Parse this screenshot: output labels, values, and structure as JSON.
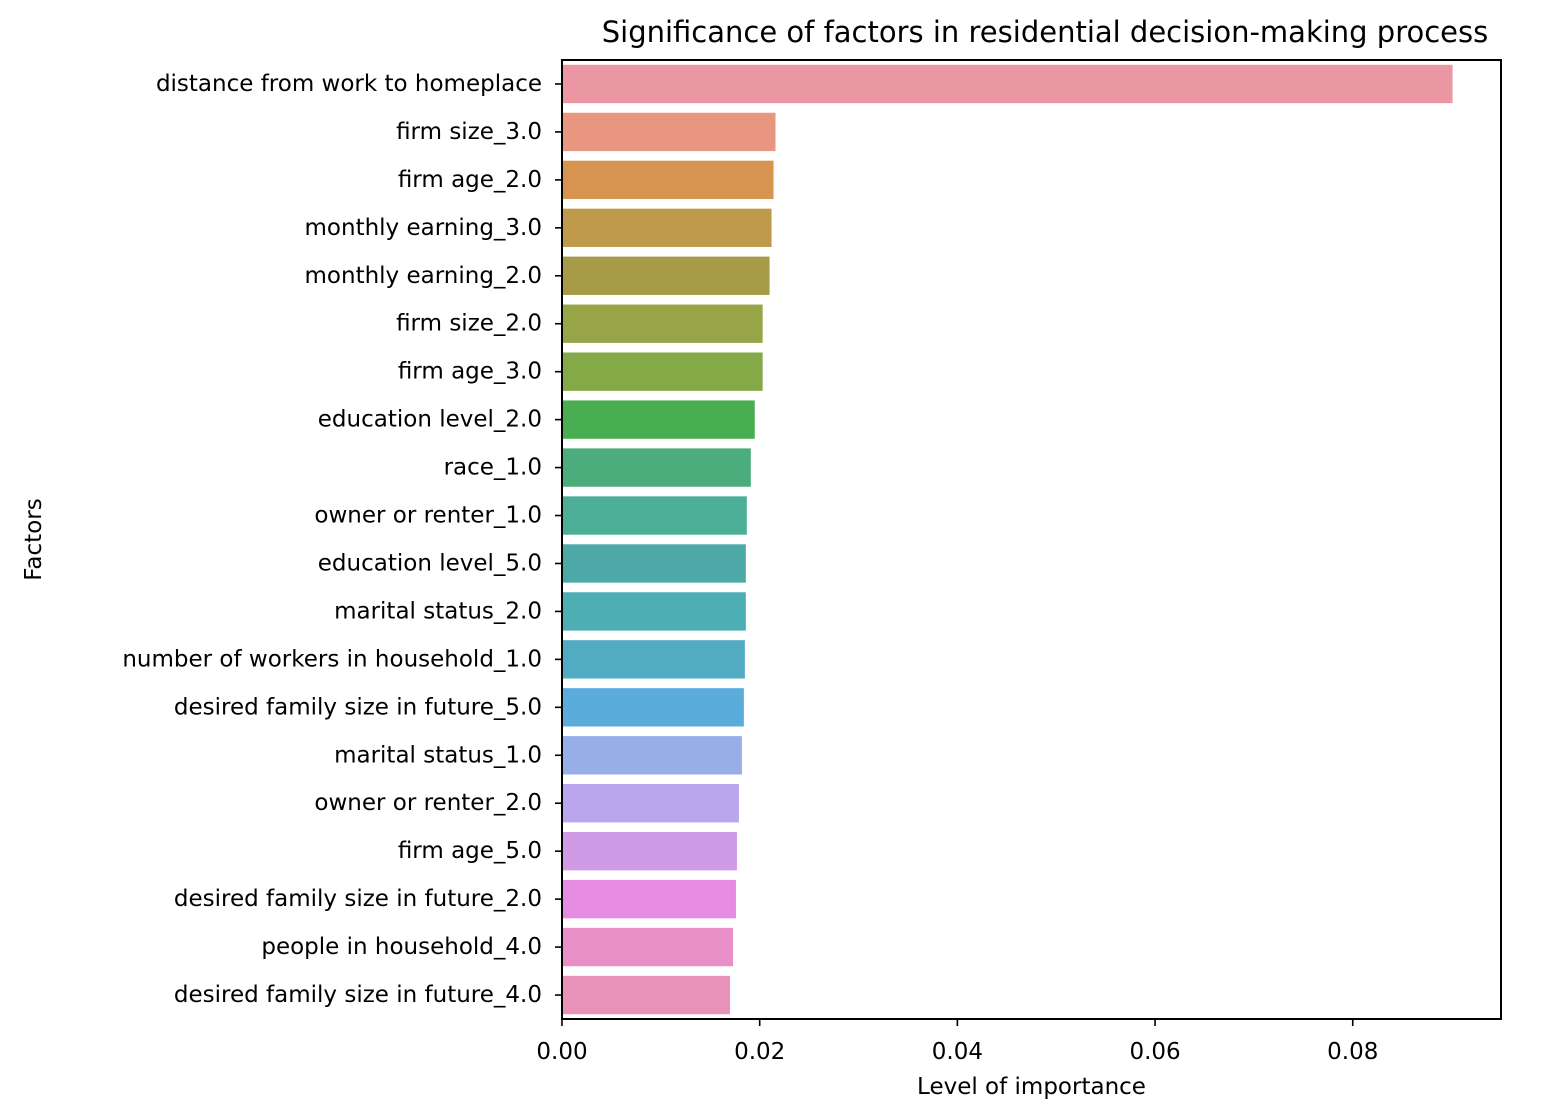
{
  "chart_data": {
    "type": "bar",
    "orientation": "horizontal",
    "title": "Significance of factors in residential decision-making process",
    "xlabel": "Level of importance",
    "ylabel": "Factors",
    "xlim": [
      0,
      0.095
    ],
    "x_ticks": [
      0.0,
      0.02,
      0.04,
      0.06,
      0.08
    ],
    "x_tick_labels": [
      "0.00",
      "0.02",
      "0.04",
      "0.06",
      "0.08"
    ],
    "grid": false,
    "legend": "none",
    "categories": [
      "distance from work to homeplace",
      "firm size_3.0",
      "firm age_2.0",
      "monthly earning_3.0",
      "monthly earning_2.0",
      "firm size_2.0",
      "firm age_3.0",
      "education level_2.0",
      "race_1.0",
      "owner or renter_1.0",
      "education level_5.0",
      "marital status_2.0",
      "number of workers in household_1.0",
      "desired family size in future_5.0",
      "marital status_1.0",
      "owner or renter_2.0",
      "firm age_5.0",
      "desired family size in future_2.0",
      "people in household_4.0",
      "desired family size in future_4.0"
    ],
    "values": [
      0.0901,
      0.0216,
      0.0214,
      0.0212,
      0.021,
      0.0203,
      0.0203,
      0.0195,
      0.0191,
      0.0187,
      0.0186,
      0.0186,
      0.0185,
      0.0184,
      0.0182,
      0.0179,
      0.0177,
      0.0176,
      0.0173,
      0.017
    ],
    "colors": [
      "#ea96a3",
      "#e8967f",
      "#d69450",
      "#bf9a4b",
      "#a89b47",
      "#97a447",
      "#84a947",
      "#49ae51",
      "#4bac7c",
      "#4cae96",
      "#4ca9a8",
      "#4daeb4",
      "#50abc3",
      "#5aaddb",
      "#97aee6",
      "#b9a6ec",
      "#cf9ae6",
      "#e68be2",
      "#e88fc8",
      "#e891b9"
    ]
  }
}
